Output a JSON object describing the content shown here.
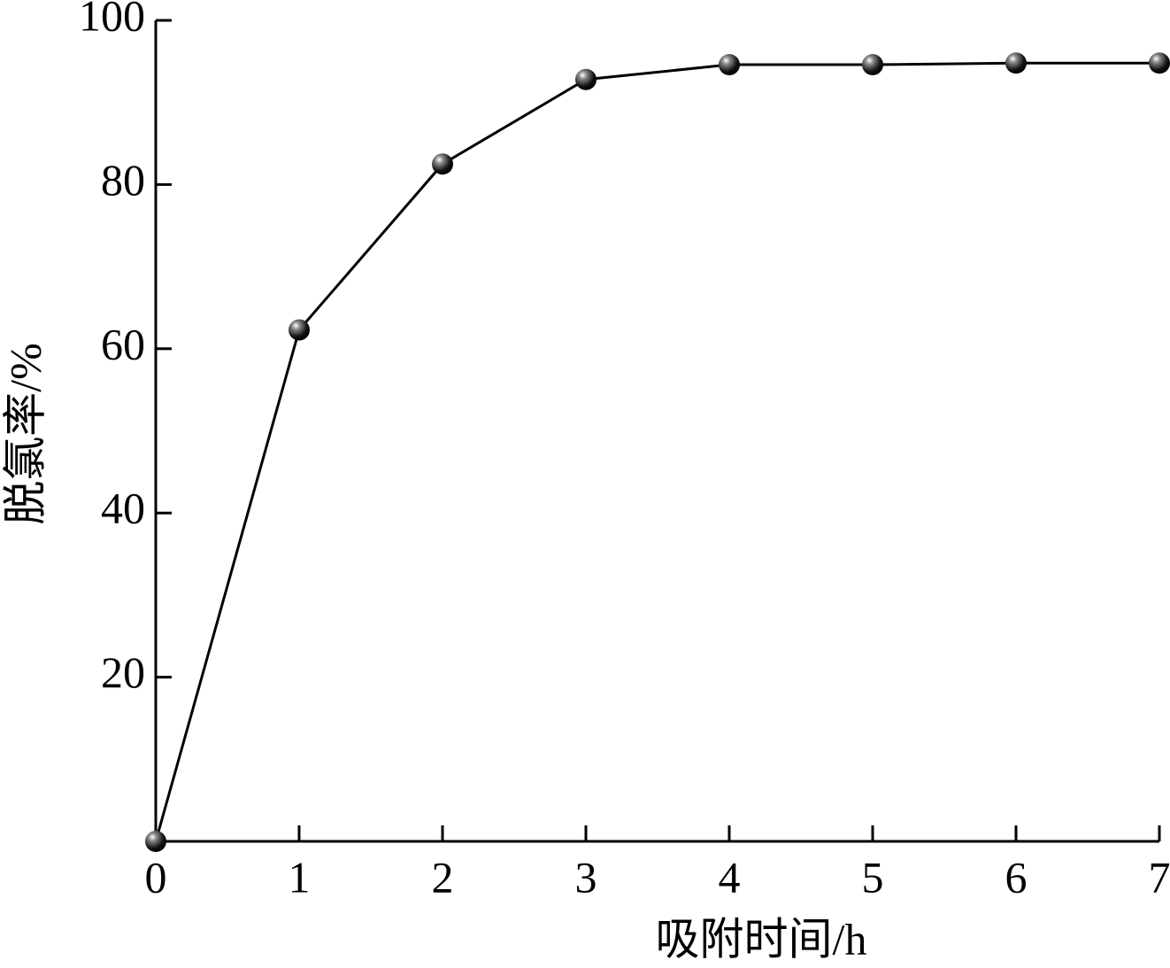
{
  "chart_data": {
    "type": "line",
    "x_label": "吸附时间/h",
    "y_label": "脱氯率/%",
    "x": [
      0,
      1,
      2,
      3,
      4,
      5,
      6,
      7
    ],
    "series": [
      {
        "name": "脱氯率",
        "color": "#000000",
        "values": [
          0,
          62.3,
          82.5,
          92.8,
          94.6,
          94.6,
          94.8,
          94.8
        ]
      }
    ],
    "xlim": [
      0,
      7
    ],
    "xticks": [
      0,
      1,
      2,
      3,
      4,
      5,
      6,
      7
    ],
    "ylim": [
      0,
      100
    ],
    "yticks": [
      20,
      40,
      60,
      80,
      100
    ],
    "grid": false,
    "legend": false
  }
}
